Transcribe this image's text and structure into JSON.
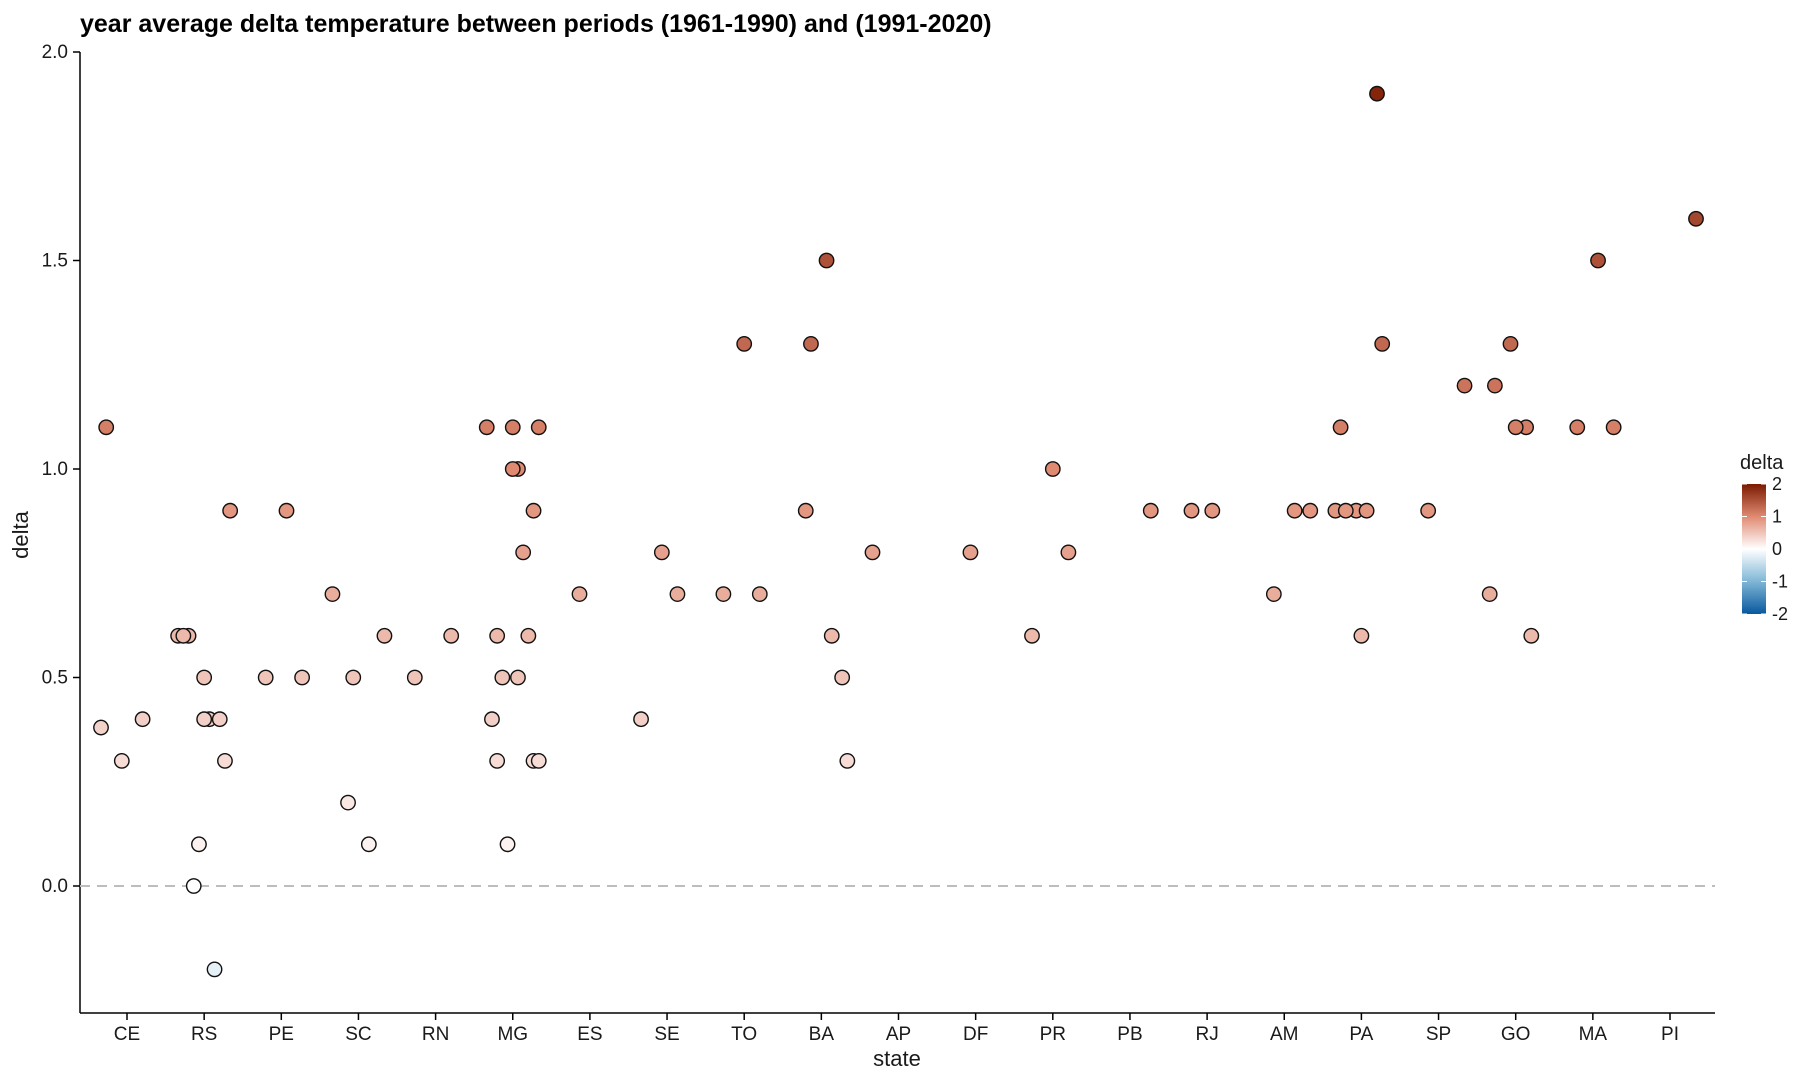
{
  "chart_data": {
    "type": "scatter",
    "title": "year average delta temperature between periods (1961-1990) and (1991-2020)",
    "xlabel": "state",
    "ylabel": "delta",
    "categories": [
      "CE",
      "RS",
      "PE",
      "SC",
      "RN",
      "MG",
      "ES",
      "SE",
      "TO",
      "BA",
      "AP",
      "DF",
      "PR",
      "PB",
      "RJ",
      "AM",
      "PA",
      "SP",
      "GO",
      "MA",
      "PI"
    ],
    "yticks": [
      "0.0",
      "0.5",
      "1.0",
      "1.5",
      "2.0"
    ],
    "ylim": [
      -0.3,
      2.0
    ],
    "reference_line": 0,
    "grid": false,
    "legend": {
      "title": "delta",
      "position": "right",
      "ticks": [
        "2",
        "1",
        "0",
        "-1",
        "-2"
      ],
      "colors": {
        "low": "#08589e",
        "mid": "#ffffff",
        "high": "#7a1a00"
      }
    },
    "points": [
      {
        "state": "CE",
        "y": 0.38
      },
      {
        "state": "CE",
        "y": 0.3
      },
      {
        "state": "CE",
        "y": 0.4
      },
      {
        "state": "CE",
        "y": 1.1
      },
      {
        "state": "RS",
        "y": 0.5
      },
      {
        "state": "RS",
        "y": 0.3
      },
      {
        "state": "RS",
        "y": 0.6
      },
      {
        "state": "RS",
        "y": 0.4
      },
      {
        "state": "RS",
        "y": 0.9
      },
      {
        "state": "RS",
        "y": 0.0
      },
      {
        "state": "RS",
        "y": -0.2
      },
      {
        "state": "RS",
        "y": 0.6
      },
      {
        "state": "RS",
        "y": 0.1
      },
      {
        "state": "RS",
        "y": 0.4
      },
      {
        "state": "RS",
        "y": 0.6
      },
      {
        "state": "RS",
        "y": 0.4
      },
      {
        "state": "PE",
        "y": 0.5
      },
      {
        "state": "PE",
        "y": 0.5
      },
      {
        "state": "PE",
        "y": 0.9
      },
      {
        "state": "SC",
        "y": 0.6
      },
      {
        "state": "SC",
        "y": 0.2
      },
      {
        "state": "SC",
        "y": 0.1
      },
      {
        "state": "SC",
        "y": 0.7
      },
      {
        "state": "SC",
        "y": 0.5
      },
      {
        "state": "RN",
        "y": 0.6
      },
      {
        "state": "RN",
        "y": 0.5
      },
      {
        "state": "MG",
        "y": 1.1
      },
      {
        "state": "MG",
        "y": 0.3
      },
      {
        "state": "MG",
        "y": 0.6
      },
      {
        "state": "MG",
        "y": 1.0
      },
      {
        "state": "MG",
        "y": 0.3
      },
      {
        "state": "MG",
        "y": 0.5
      },
      {
        "state": "MG",
        "y": 0.8
      },
      {
        "state": "MG",
        "y": 1.1
      },
      {
        "state": "MG",
        "y": 0.1
      },
      {
        "state": "MG",
        "y": 0.6
      },
      {
        "state": "MG",
        "y": 0.4
      },
      {
        "state": "MG",
        "y": 1.0
      },
      {
        "state": "MG",
        "y": 0.9
      },
      {
        "state": "MG",
        "y": 0.3
      },
      {
        "state": "MG",
        "y": 0.5
      },
      {
        "state": "MG",
        "y": 1.1
      },
      {
        "state": "ES",
        "y": 0.7
      },
      {
        "state": "SE",
        "y": 0.7
      },
      {
        "state": "SE",
        "y": 0.4
      },
      {
        "state": "SE",
        "y": 0.8
      },
      {
        "state": "TO",
        "y": 0.7
      },
      {
        "state": "TO",
        "y": 0.7
      },
      {
        "state": "TO",
        "y": 1.3
      },
      {
        "state": "BA",
        "y": 0.5
      },
      {
        "state": "BA",
        "y": 0.9
      },
      {
        "state": "BA",
        "y": 1.5
      },
      {
        "state": "BA",
        "y": 0.3
      },
      {
        "state": "BA",
        "y": 1.3
      },
      {
        "state": "BA",
        "y": 0.6
      },
      {
        "state": "AP",
        "y": 0.8
      },
      {
        "state": "DF",
        "y": 0.8
      },
      {
        "state": "PR",
        "y": 0.8
      },
      {
        "state": "PR",
        "y": 0.6
      },
      {
        "state": "PR",
        "y": 1.0
      },
      {
        "state": "PB",
        "y": 0.9
      },
      {
        "state": "RJ",
        "y": 0.9
      },
      {
        "state": "RJ",
        "y": 0.9
      },
      {
        "state": "AM",
        "y": 0.9
      },
      {
        "state": "AM",
        "y": 0.7
      },
      {
        "state": "AM",
        "y": 0.9
      },
      {
        "state": "PA",
        "y": 0.9
      },
      {
        "state": "PA",
        "y": 0.9
      },
      {
        "state": "PA",
        "y": 1.9
      },
      {
        "state": "PA",
        "y": 1.1
      },
      {
        "state": "PA",
        "y": 0.6
      },
      {
        "state": "PA",
        "y": 1.3
      },
      {
        "state": "PA",
        "y": 0.9
      },
      {
        "state": "PA",
        "y": 0.9
      },
      {
        "state": "SP",
        "y": 1.2
      },
      {
        "state": "SP",
        "y": 0.9
      },
      {
        "state": "GO",
        "y": 1.1
      },
      {
        "state": "GO",
        "y": 0.7
      },
      {
        "state": "GO",
        "y": 1.3
      },
      {
        "state": "GO",
        "y": 0.6
      },
      {
        "state": "GO",
        "y": 1.2
      },
      {
        "state": "GO",
        "y": 1.1
      },
      {
        "state": "MA",
        "y": 1.1
      },
      {
        "state": "MA",
        "y": 1.1
      },
      {
        "state": "MA",
        "y": 1.5
      },
      {
        "state": "PI",
        "y": 1.6
      }
    ]
  }
}
